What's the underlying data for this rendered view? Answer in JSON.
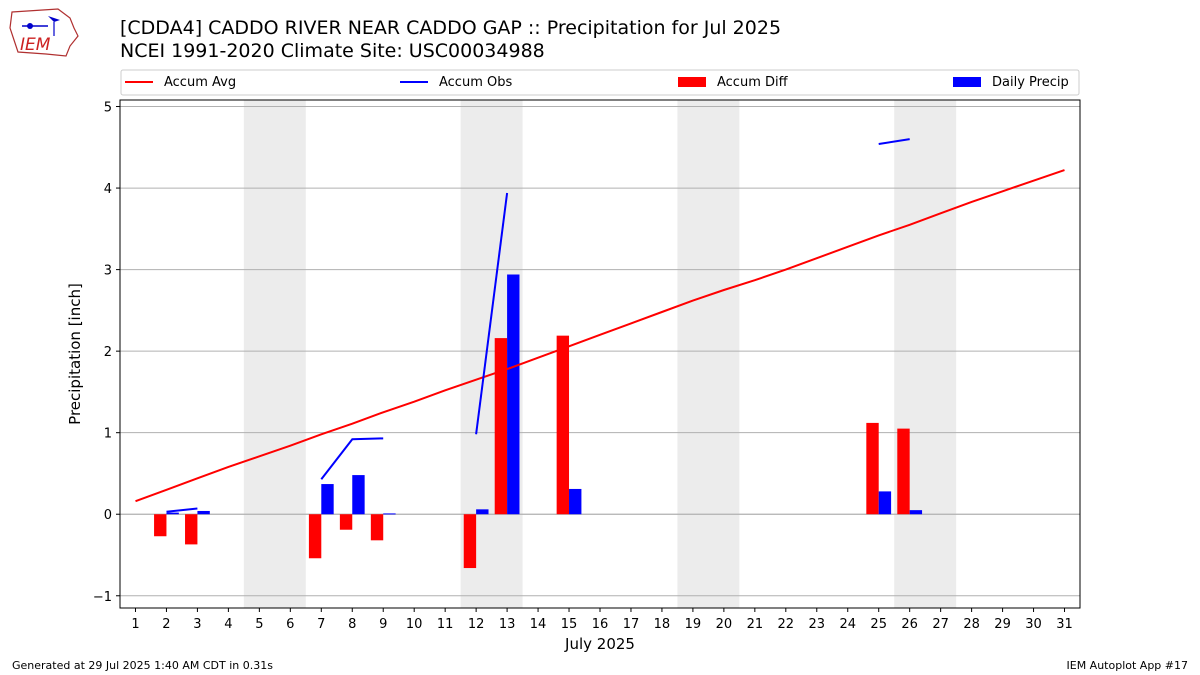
{
  "header": {
    "title": "[CDDA4] CADDO RIVER NEAR CADDO GAP :: Precipitation for Jul 2025",
    "subtitle": "NCEI 1991-2020 Climate Site: USC00034988",
    "logo_text": "IEM"
  },
  "footer": {
    "generated": "Generated at 29 Jul 2025 1:40 AM CDT in 0.31s",
    "app": "IEM Autoplot App #17"
  },
  "chart_data": {
    "type": "bar",
    "xlabel": "July 2025",
    "ylabel": "Precipitation [inch]",
    "x": [
      1,
      2,
      3,
      4,
      5,
      6,
      7,
      8,
      9,
      10,
      11,
      12,
      13,
      14,
      15,
      16,
      17,
      18,
      19,
      20,
      21,
      22,
      23,
      24,
      25,
      26,
      27,
      28,
      29,
      30,
      31
    ],
    "xlim": [
      0.5,
      31.5
    ],
    "ylim": [
      -1.15,
      5.08
    ],
    "yticks": [
      -1,
      0,
      1,
      2,
      3,
      4,
      5
    ],
    "grid": "y",
    "legend_position": "top",
    "weekend_bands": [
      [
        4.5,
        6.5
      ],
      [
        11.5,
        13.5
      ],
      [
        18.5,
        20.5
      ],
      [
        25.5,
        27.5
      ]
    ],
    "weekend_color": "#ececec",
    "legend": [
      {
        "label": "Accum Avg",
        "kind": "line",
        "color": "#ff0000"
      },
      {
        "label": "Accum Obs",
        "kind": "line",
        "color": "#0000ff"
      },
      {
        "label": "Accum Diff",
        "kind": "bar",
        "color": "#ff0000"
      },
      {
        "label": "Daily Precip",
        "kind": "bar",
        "color": "#0000ff"
      }
    ],
    "series": [
      {
        "name": "Accum Avg",
        "type": "line",
        "color": "#ff0000",
        "values": [
          0.16,
          0.3,
          0.44,
          0.58,
          0.71,
          0.84,
          0.98,
          1.11,
          1.25,
          1.38,
          1.52,
          1.65,
          1.78,
          1.92,
          2.06,
          2.2,
          2.34,
          2.48,
          2.62,
          2.75,
          2.87,
          3.0,
          3.14,
          3.28,
          3.42,
          3.55,
          3.69,
          3.83,
          3.96,
          4.09,
          4.22
        ]
      },
      {
        "name": "Accum Obs",
        "type": "line",
        "color": "#0000ff",
        "values": [
          null,
          0.03,
          0.07,
          null,
          null,
          null,
          0.43,
          0.92,
          0.93,
          null,
          null,
          0.98,
          3.94,
          null,
          null,
          null,
          null,
          null,
          null,
          null,
          null,
          null,
          null,
          null,
          4.54,
          4.6,
          null,
          null,
          null,
          null,
          null
        ]
      },
      {
        "name": "Accum Diff",
        "type": "bar",
        "color": "#ff0000",
        "values": [
          null,
          -0.27,
          -0.37,
          null,
          null,
          null,
          -0.54,
          -0.19,
          -0.32,
          null,
          null,
          -0.66,
          2.16,
          null,
          2.19,
          null,
          null,
          null,
          null,
          null,
          null,
          null,
          null,
          null,
          1.12,
          1.05,
          null,
          null,
          null,
          null,
          null
        ]
      },
      {
        "name": "Daily Precip",
        "type": "bar",
        "color": "#0000ff",
        "values": [
          null,
          0.02,
          0.04,
          null,
          null,
          null,
          0.37,
          0.48,
          0.01,
          null,
          null,
          0.06,
          2.94,
          null,
          0.31,
          null,
          null,
          null,
          null,
          null,
          null,
          null,
          null,
          null,
          0.28,
          0.05,
          null,
          null,
          null,
          null,
          null
        ]
      }
    ]
  }
}
